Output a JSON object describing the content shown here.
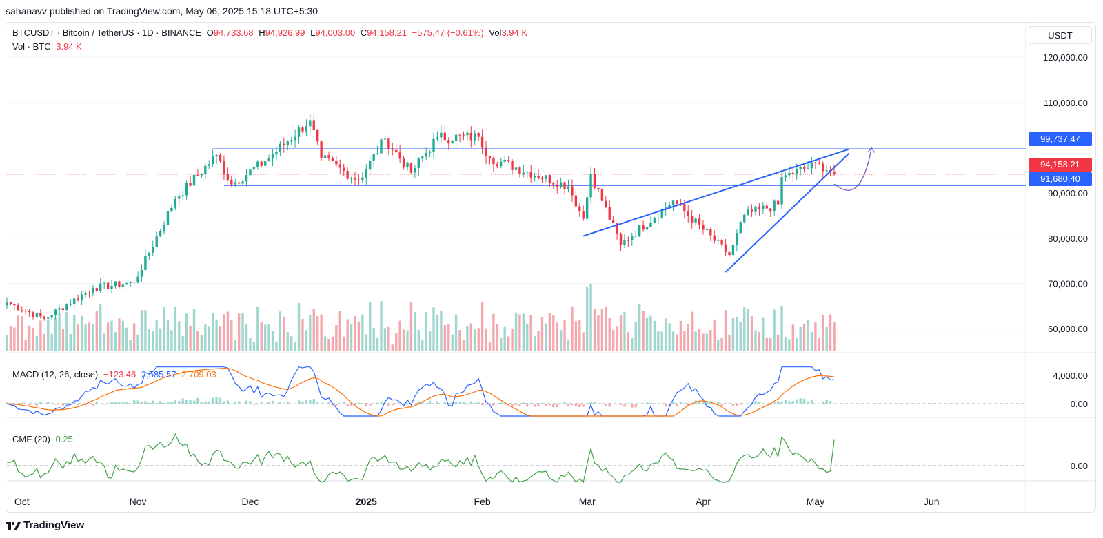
{
  "header": {
    "publisher_line": "sahanavv published on TradingView.com, May 06, 2025 15:18 UTC+5:30"
  },
  "legend": {
    "symbol_line": "BTCUSDT · Bitcoin / TetherUS · 1D · BINANCE",
    "o_label": "O",
    "o_value": "94,733.68",
    "h_label": "H",
    "h_value": "94,926.99",
    "l_label": "L",
    "l_value": "94,003.00",
    "c_label": "C",
    "c_value": "94,158.21",
    "change": "−575.47 (−0.61%)",
    "vol_label": "Vol",
    "vol_value": "3.94 K",
    "vol_line_label": "Vol · BTC",
    "vol_line_value": "3.94 K"
  },
  "macd_legend": {
    "label": "MACD (12, 26, close)",
    "hist": "−123.46",
    "macd": "2,585.57",
    "signal": "2,709.03"
  },
  "cmf_legend": {
    "label": "CMF (20)",
    "value": "0.25"
  },
  "currency_button": "USDT",
  "price_tags": {
    "upper": "99,737.47",
    "current": "94,158.21",
    "lower": "91,680.40"
  },
  "colors": {
    "up": "#22ab94",
    "down": "#f23645",
    "vol_up": "#9fd7cf",
    "vol_down": "#f5a7ae",
    "trend": "#2962ff",
    "macd": "#2962ff",
    "signal": "#ff6d00",
    "cmf": "#43a047",
    "projection": "#7e57c2"
  },
  "price_axis": {
    "labels": [
      "120,000.00",
      "110,000.00",
      "80,000.00",
      "70,000.00",
      "60,000.00"
    ],
    "partial_labels": [
      "90,000.00"
    ]
  },
  "macd_axis": {
    "labels": [
      "4,000.00",
      "0.00"
    ]
  },
  "cmf_axis": {
    "labels": [
      "0.00"
    ]
  },
  "time_axis": {
    "labels": [
      "Oct",
      "Nov",
      "Dec",
      "2025",
      "Feb",
      "Mar",
      "Apr",
      "May",
      "Jun"
    ]
  },
  "brand": {
    "name": "TradingView"
  },
  "chart_data": {
    "type": "candlestick",
    "symbol": "BTCUSDT",
    "interval": "1D",
    "ylim": [
      55000,
      122000
    ],
    "horizontal_levels": [
      99737.47,
      91680.4
    ],
    "current_price": 94158.21,
    "trendlines": [
      {
        "name": "upper",
        "from": [
          "2025-02-28",
          80500
        ],
        "to": [
          "2025-05-10",
          99700
        ]
      },
      {
        "name": "lower",
        "from": [
          "2025-04-07",
          72500
        ],
        "to": [
          "2025-05-10",
          98800
        ]
      }
    ],
    "projection_arrow": {
      "from": [
        "2025-05-06",
        92000
      ],
      "to": [
        "2025-05-16",
        100000
      ]
    },
    "ohlc_key_points": [
      {
        "date": "2024-09-27",
        "close": 65800
      },
      {
        "date": "2024-10-07",
        "close": 62200
      },
      {
        "date": "2024-10-20",
        "close": 69000
      },
      {
        "date": "2024-10-31",
        "close": 70200
      },
      {
        "date": "2024-11-11",
        "close": 88700
      },
      {
        "date": "2024-11-22",
        "close": 98400
      },
      {
        "date": "2024-11-26",
        "close": 91900
      },
      {
        "date": "2024-12-05",
        "close": 97000
      },
      {
        "date": "2024-12-17",
        "close": 106100
      },
      {
        "date": "2024-12-20",
        "close": 97700
      },
      {
        "date": "2024-12-30",
        "close": 92800
      },
      {
        "date": "2025-01-06",
        "close": 102000
      },
      {
        "date": "2025-01-13",
        "close": 94500
      },
      {
        "date": "2025-01-20",
        "close": 102300
      },
      {
        "date": "2025-01-31",
        "close": 102400
      },
      {
        "date": "2025-02-03",
        "close": 97700
      },
      {
        "date": "2025-02-24",
        "close": 91500
      },
      {
        "date": "2025-02-28",
        "close": 84300
      },
      {
        "date": "2025-03-02",
        "close": 94200
      },
      {
        "date": "2025-03-10",
        "close": 78600
      },
      {
        "date": "2025-03-24",
        "close": 88300
      },
      {
        "date": "2025-04-08",
        "close": 76300
      },
      {
        "date": "2025-04-12",
        "close": 85200
      },
      {
        "date": "2025-04-21",
        "close": 87500
      },
      {
        "date": "2025-04-22",
        "close": 93500
      },
      {
        "date": "2025-05-02",
        "close": 96500
      },
      {
        "date": "2025-05-06",
        "close": 94158.21
      }
    ],
    "indicators": {
      "macd": {
        "params": [
          12,
          26
        ],
        "hist": -123.46,
        "macd": 2585.57,
        "signal": 2709.03
      },
      "cmf": {
        "period": 20,
        "value": 0.25
      }
    }
  }
}
